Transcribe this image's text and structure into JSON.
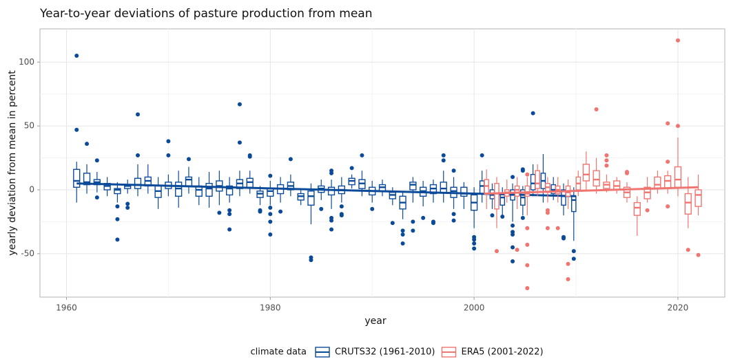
{
  "chart_data": {
    "type": "boxplot",
    "title": "Year-to-year deviations of pasture production from mean",
    "x_label": "year",
    "y_label": "yearly deviation from mean in percent",
    "legend_title": "climate data",
    "legend_position": "bottom",
    "grid": true,
    "xlim": [
      1957.4,
      2024.6
    ],
    "xticks": [
      1960,
      1980,
      2000,
      2020
    ],
    "ylim": [
      -84,
      126
    ],
    "yticks": [
      -50,
      0,
      50,
      100
    ],
    "series": [
      {
        "name": "CRUTS32 (1961-2010)",
        "color": "#0a4a98",
        "x": [
          1961,
          1962,
          1963,
          1964,
          1965,
          1966,
          1967,
          1968,
          1969,
          1970,
          1971,
          1972,
          1973,
          1974,
          1975,
          1976,
          1977,
          1978,
          1979,
          1980,
          1981,
          1982,
          1983,
          1984,
          1985,
          1986,
          1987,
          1988,
          1989,
          1990,
          1991,
          1992,
          1993,
          1994,
          1995,
          1996,
          1997,
          1998,
          1999,
          2000,
          2001,
          2002,
          2003,
          2004,
          2005,
          2006,
          2007,
          2008,
          2009,
          2010
        ],
        "whisker_low": [
          -10,
          -3,
          -2,
          -5,
          -10,
          -3,
          -5,
          -3,
          -15,
          -5,
          -14,
          -3,
          -12,
          -14,
          -12,
          -10,
          -5,
          -3,
          -12,
          -12,
          -10,
          -5,
          -12,
          -27,
          -8,
          -15,
          -10,
          1,
          -5,
          -10,
          -5,
          -12,
          -23,
          -10,
          -13,
          -10,
          -10,
          -15,
          -15,
          -30,
          -10,
          -15,
          -20,
          -25,
          -20,
          -5,
          -10,
          -8,
          -20,
          -40
        ],
        "q1": [
          2,
          4,
          4,
          0,
          -3,
          1,
          1,
          3,
          -6,
          1,
          -5,
          3,
          -5,
          -5,
          -1,
          -4,
          1,
          2,
          -6,
          -5,
          -3,
          0,
          -8,
          -12,
          -2,
          -4,
          -3,
          4,
          1,
          -4,
          -1,
          -7,
          -15,
          0,
          -5,
          -3,
          -2,
          -6,
          -5,
          -16,
          -3,
          -7,
          -12,
          -8,
          -12,
          0,
          1,
          -3,
          -12,
          -17
        ],
        "median": [
          7,
          6,
          6,
          3,
          0,
          3,
          4,
          7,
          -1,
          3,
          1,
          8,
          0,
          1,
          3,
          1,
          5,
          6,
          -3,
          -1,
          1,
          3,
          -5,
          -5,
          1,
          0,
          0,
          7,
          5,
          -1,
          2,
          -4,
          -10,
          4,
          -1,
          1,
          1,
          -1,
          -3,
          -10,
          3,
          -4,
          -6,
          -4,
          -6,
          5,
          7,
          0,
          -5,
          -8
        ],
        "q3": [
          16,
          13,
          8,
          5,
          1,
          4,
          9,
          10,
          3,
          6,
          6,
          10,
          3,
          5,
          7,
          3,
          8,
          9,
          -1,
          1,
          4,
          6,
          -3,
          -1,
          3,
          2,
          3,
          9,
          8,
          2,
          4,
          -2,
          -5,
          6,
          2,
          4,
          6,
          2,
          2,
          -4,
          7,
          0,
          -3,
          0,
          0,
          12,
          13,
          4,
          0,
          -5
        ],
        "whisker_high": [
          22,
          20,
          14,
          10,
          6,
          8,
          20,
          20,
          10,
          12,
          15,
          18,
          10,
          14,
          15,
          10,
          15,
          15,
          3,
          7,
          10,
          12,
          1,
          5,
          8,
          8,
          10,
          12,
          15,
          7,
          8,
          2,
          -1,
          10,
          7,
          8,
          15,
          10,
          6,
          2,
          15,
          5,
          2,
          5,
          3,
          20,
          28,
          10,
          5,
          2
        ],
        "outliers": [
          [
            105,
            47
          ],
          [
            36
          ],
          [
            23,
            -6
          ],
          [],
          [
            -13,
            -23,
            -39
          ],
          [
            -11,
            -14
          ],
          [
            59,
            27
          ],
          [],
          [],
          [
            38,
            27
          ],
          [],
          [
            24
          ],
          [],
          [],
          [
            -18
          ],
          [
            -16,
            -19,
            -31
          ],
          [
            67,
            37
          ],
          [
            27,
            26
          ],
          [
            -16,
            -17
          ],
          [
            11,
            -14,
            -19,
            -25,
            -35
          ],
          [
            -17
          ],
          [
            24
          ],
          [],
          [
            -53,
            -55
          ],
          [
            -15
          ],
          [
            15,
            13,
            -22,
            -24,
            -31
          ],
          [
            -19,
            -13,
            -20
          ],
          [
            17
          ],
          [
            27
          ],
          [
            -15
          ],
          [],
          [
            -26
          ],
          [
            -32,
            -35,
            -42
          ],
          [
            -25,
            -32
          ],
          [
            -22
          ],
          [
            -25,
            -26
          ],
          [
            27,
            23
          ],
          [
            15,
            -19,
            -24
          ],
          [],
          [
            -37,
            -39,
            -42,
            -46
          ],
          [
            27
          ],
          [
            -20
          ],
          [
            -21
          ],
          [
            10,
            -28,
            -33,
            -35,
            -45,
            -56
          ],
          [
            16,
            15,
            -22
          ],
          [
            60
          ],
          [],
          [],
          [
            -37,
            -38
          ],
          [
            -48,
            -54
          ]
        ],
        "trend": {
          "x": [
            1961,
            2010
          ],
          "values": [
            5,
            -5
          ]
        }
      },
      {
        "name": "ERA5 (2001-2022)",
        "color": "#f07470",
        "x": [
          2001,
          2002,
          2003,
          2004,
          2005,
          2006,
          2007,
          2008,
          2009,
          2010,
          2011,
          2012,
          2013,
          2014,
          2015,
          2016,
          2017,
          2018,
          2019,
          2020,
          2021,
          2022
        ],
        "whisker_low": [
          -15,
          -30,
          -10,
          -15,
          -20,
          -5,
          -10,
          -10,
          -15,
          -5,
          0,
          -3,
          -2,
          -3,
          -10,
          -36,
          -10,
          -3,
          -3,
          -5,
          -30,
          -20
        ],
        "q1": [
          -3,
          -15,
          -5,
          -5,
          -5,
          1,
          -2,
          -3,
          -5,
          0,
          7,
          3,
          1,
          0,
          -6,
          -20,
          -7,
          1,
          1,
          2,
          -19,
          -13
        ],
        "median": [
          3,
          -3,
          -2,
          0,
          -3,
          5,
          2,
          0,
          -2,
          5,
          12,
          8,
          4,
          3,
          -2,
          -14,
          -2,
          4,
          7,
          8,
          -10,
          -4
        ],
        "q3": [
          8,
          5,
          0,
          3,
          3,
          15,
          5,
          3,
          3,
          10,
          20,
          15,
          6,
          7,
          2,
          -10,
          2,
          10,
          11,
          18,
          -3,
          0
        ],
        "whisker_high": [
          16,
          10,
          8,
          10,
          10,
          20,
          10,
          10,
          8,
          15,
          30,
          25,
          12,
          10,
          6,
          -5,
          10,
          15,
          15,
          41,
          10,
          12
        ],
        "outliers": [
          [],
          [
            -48
          ],
          [],
          [
            -47
          ],
          [
            12,
            -30,
            -43,
            -59,
            -77
          ],
          [],
          [
            -16,
            -18,
            -30
          ],
          [
            -30
          ],
          [
            -58,
            -70
          ],
          [],
          [],
          [
            63
          ],
          [
            27,
            23,
            19
          ],
          [],
          [
            14,
            13
          ],
          [],
          [
            -16
          ],
          [],
          [
            52,
            22,
            -13
          ],
          [
            117,
            50
          ],
          [
            -47
          ],
          [
            -51
          ]
        ],
        "trend": {
          "x": [
            2001,
            2022
          ],
          "values": [
            -3,
            2
          ]
        }
      }
    ]
  }
}
